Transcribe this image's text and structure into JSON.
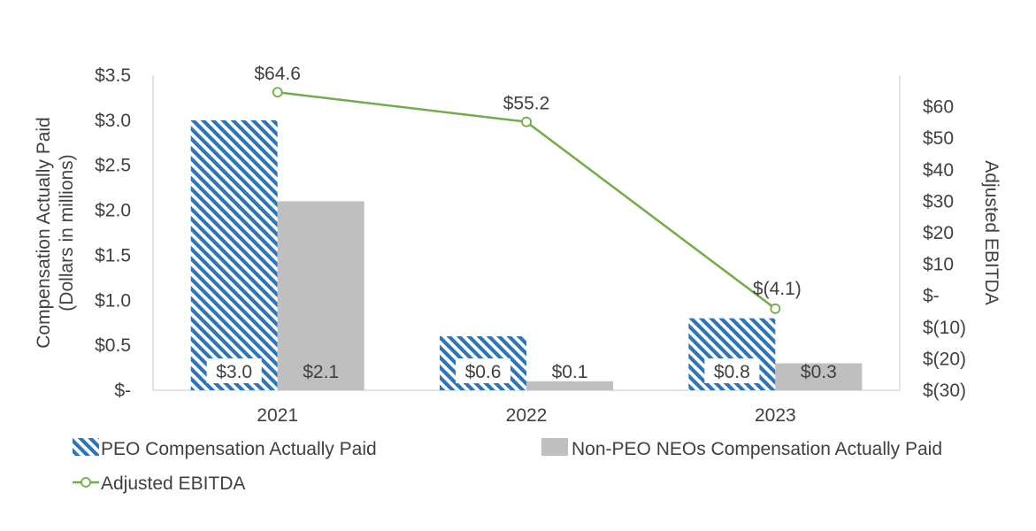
{
  "chart_data": {
    "type": "bar",
    "categories": [
      "2021",
      "2022",
      "2023"
    ],
    "series": [
      {
        "name": "PEO Compensation Actually Paid",
        "kind": "bar",
        "axis": "left",
        "values": [
          3.0,
          0.6,
          0.8
        ],
        "labels": [
          "$3.0",
          "$0.6",
          "$0.8"
        ],
        "color": "#2E75B6",
        "pattern": "diagonal-stripes"
      },
      {
        "name": "Non-PEO NEOs Compensation Actually Paid",
        "kind": "bar",
        "axis": "left",
        "values": [
          2.1,
          0.1,
          0.3
        ],
        "labels": [
          "$2.1",
          "$0.1",
          "$0.3"
        ],
        "color": "#BFBFBF"
      },
      {
        "name": "Adjusted EBITDA",
        "kind": "line",
        "axis": "right",
        "values": [
          64.6,
          55.2,
          -4.1
        ],
        "labels": [
          "$64.6",
          "$55.2",
          "$(4.1)"
        ],
        "color": "#70AD47",
        "marker": "hollow-circle"
      }
    ],
    "left_axis": {
      "title_lines": [
        "Compensation Actually Paid",
        "(Dollars in millions)"
      ],
      "ylim": [
        0,
        3.5
      ],
      "tick_values": [
        0,
        0.5,
        1.0,
        1.5,
        2.0,
        2.5,
        3.0,
        3.5
      ],
      "tick_labels": [
        "$-",
        "$0.5",
        "$1.0",
        "$1.5",
        "$2.0",
        "$2.5",
        "$3.0",
        "$3.5"
      ]
    },
    "right_axis": {
      "title": "Adjusted EBITDA",
      "ylim": [
        -30,
        70
      ],
      "tick_values": [
        -30,
        -20,
        -10,
        0,
        10,
        20,
        30,
        40,
        50,
        60
      ],
      "tick_labels": [
        "$(30)",
        "$(20)",
        "$(10)",
        "$-",
        "$10",
        "$20",
        "$30",
        "$40",
        "$50",
        "$60"
      ]
    },
    "legend_position": "bottom",
    "grid": false
  }
}
